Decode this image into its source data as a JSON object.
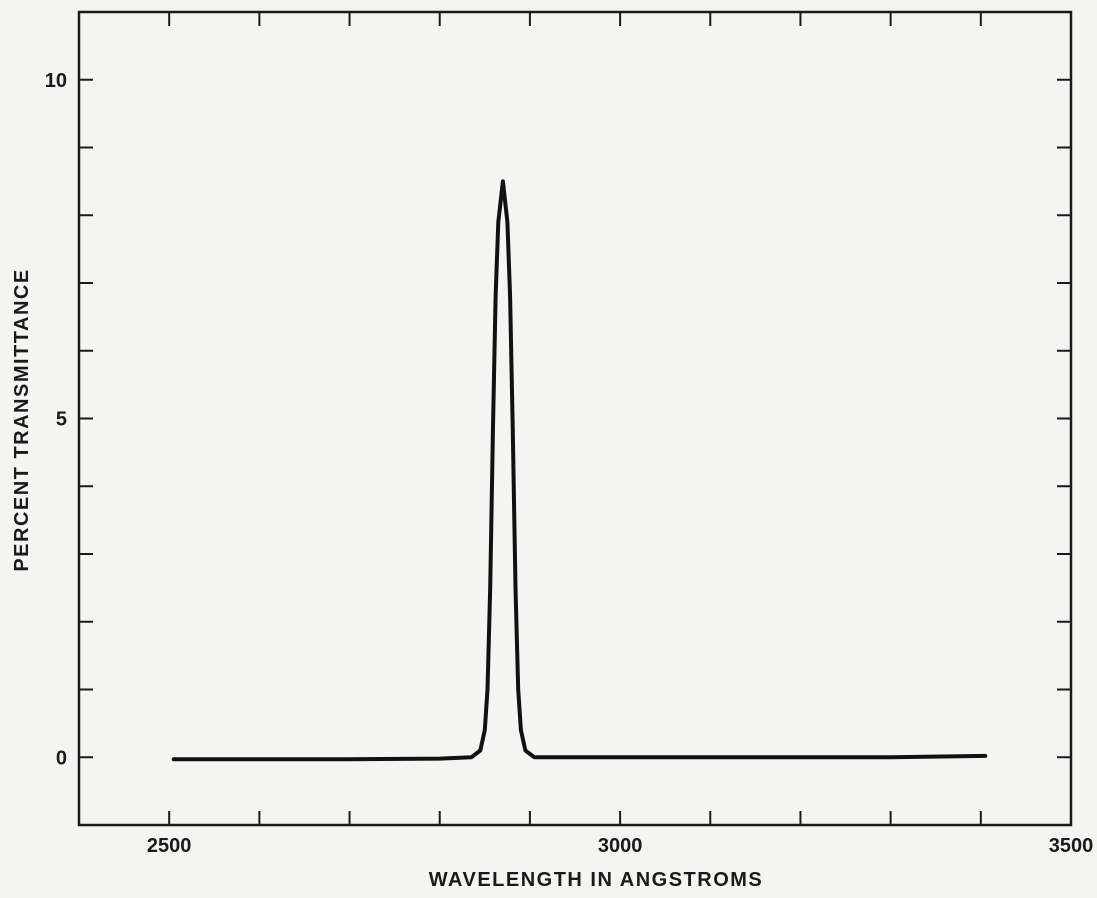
{
  "chart_data": {
    "type": "line",
    "title": "",
    "xlabel": "WAVELENGTH IN ANGSTROMS",
    "ylabel": "PERCENT TRANSMITTANCE",
    "xlim": [
      2400,
      3500
    ],
    "ylim": [
      -1,
      11
    ],
    "x_ticks": [
      2500,
      2600,
      2700,
      2800,
      2900,
      3000,
      3100,
      3200,
      3300,
      3400,
      3500
    ],
    "x_tick_labels": [
      {
        "value": 2500,
        "label": "2500"
      },
      {
        "value": 3000,
        "label": "3000"
      },
      {
        "value": 3500,
        "label": "3500"
      }
    ],
    "y_ticks": [
      0,
      1,
      2,
      3,
      4,
      5,
      6,
      7,
      8,
      9,
      10
    ],
    "y_tick_labels": [
      {
        "value": 0,
        "label": "0"
      },
      {
        "value": 5,
        "label": "5"
      },
      {
        "value": 10,
        "label": "10"
      }
    ],
    "grid": false,
    "colors": {
      "line": "#111111",
      "axes": "#1a1a1a",
      "background": "#f4f4f2"
    },
    "series": [
      {
        "values": [
          {
            "x": 2505,
            "y": -0.03
          },
          {
            "x": 2600,
            "y": -0.03
          },
          {
            "x": 2700,
            "y": -0.03
          },
          {
            "x": 2800,
            "y": -0.02
          },
          {
            "x": 2835,
            "y": 0.0
          },
          {
            "x": 2845,
            "y": 0.1
          },
          {
            "x": 2850,
            "y": 0.4
          },
          {
            "x": 2853,
            "y": 1.0
          },
          {
            "x": 2856,
            "y": 2.5
          },
          {
            "x": 2859,
            "y": 4.8
          },
          {
            "x": 2862,
            "y": 6.8
          },
          {
            "x": 2865,
            "y": 7.9
          },
          {
            "x": 2870,
            "y": 8.5
          },
          {
            "x": 2875,
            "y": 7.9
          },
          {
            "x": 2878,
            "y": 6.8
          },
          {
            "x": 2881,
            "y": 4.8
          },
          {
            "x": 2884,
            "y": 2.5
          },
          {
            "x": 2887,
            "y": 1.0
          },
          {
            "x": 2890,
            "y": 0.4
          },
          {
            "x": 2895,
            "y": 0.1
          },
          {
            "x": 2905,
            "y": 0.0
          },
          {
            "x": 2950,
            "y": 0.0
          },
          {
            "x": 3100,
            "y": 0.0
          },
          {
            "x": 3300,
            "y": 0.0
          },
          {
            "x": 3405,
            "y": 0.02
          }
        ]
      }
    ]
  }
}
